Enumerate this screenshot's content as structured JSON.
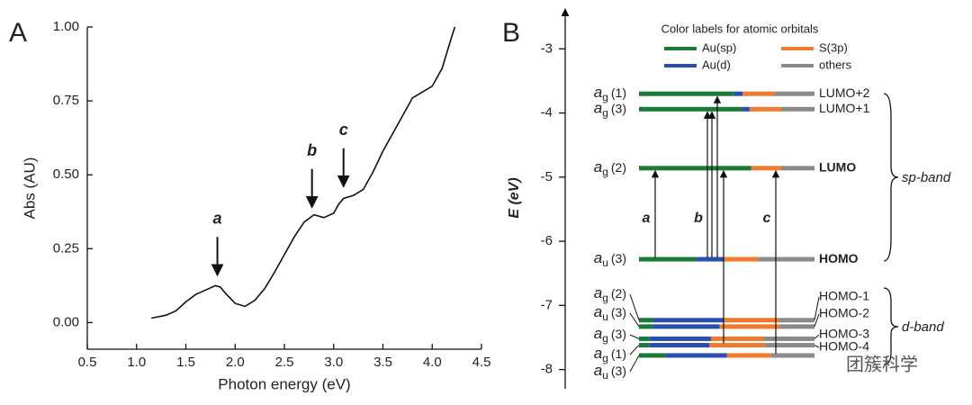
{
  "chart_data": [
    {
      "type": "line",
      "panel": "A",
      "xlabel": "Photon energy (eV)",
      "ylabel": "Abs (AU)",
      "xlim": [
        0.5,
        4.5
      ],
      "xticks": [
        0.5,
        {
          "value": 1,
          "label": "1.0"
        },
        1.5,
        {
          "value": 2,
          "label": "2.0"
        },
        2.5,
        {
          "value": 3,
          "label": "3.0"
        },
        3.5,
        {
          "value": 4,
          "label": "4.0"
        },
        4.5
      ],
      "ylim": [
        -0.09,
        1.0
      ],
      "yticks": [
        {
          "value": 0,
          "label": "0.00"
        },
        {
          "value": 0.25,
          "label": "0.25"
        },
        {
          "value": 0.5,
          "label": "0.50"
        },
        {
          "value": 0.75,
          "label": "0.75"
        },
        {
          "value": 1,
          "label": "1.00"
        }
      ],
      "color": "#111111",
      "x": [
        1.15,
        1.3,
        1.4,
        1.5,
        1.6,
        1.7,
        1.8,
        1.85,
        1.9,
        2.0,
        2.1,
        2.2,
        2.3,
        2.4,
        2.5,
        2.6,
        2.7,
        2.8,
        2.9,
        3.0,
        3.05,
        3.1,
        3.2,
        3.3,
        3.4,
        3.5,
        3.6,
        3.7,
        3.8,
        3.9,
        4.0,
        4.1,
        4.2,
        4.23
      ],
      "values": [
        0.015,
        0.025,
        0.04,
        0.07,
        0.095,
        0.11,
        0.125,
        0.12,
        0.1,
        0.065,
        0.055,
        0.075,
        0.115,
        0.17,
        0.23,
        0.29,
        0.34,
        0.365,
        0.355,
        0.37,
        0.4,
        0.42,
        0.43,
        0.45,
        0.51,
        0.58,
        0.64,
        0.7,
        0.76,
        0.78,
        0.8,
        0.86,
        0.97,
        1.0
      ],
      "annotations": [
        {
          "text": "a",
          "x": 1.82,
          "y": 0.13
        },
        {
          "text": "b",
          "x": 2.78,
          "y": 0.36
        },
        {
          "text": "c",
          "x": 3.1,
          "y": 0.43
        }
      ]
    },
    {
      "type": "energy-levels",
      "panel": "B",
      "ylabel": "E (eV)",
      "ylim": [
        -8.3,
        -2.35
      ],
      "yticks": [
        -3,
        -4,
        -5,
        -6,
        -7,
        -8
      ],
      "legend_title": "Color labels for atomic orbitals",
      "orbitals": [
        {
          "name": "Au(sp)",
          "color": "#1b7a3a"
        },
        {
          "name": "Au(d)",
          "color": "#2a4db0"
        },
        {
          "name": "S(3p)",
          "color": "#f07a2e"
        },
        {
          "name": "others",
          "color": "#8a8a8a"
        }
      ],
      "levels": [
        {
          "energy": -3.7,
          "left": {
            "sym": "a",
            "sub": "g",
            "num": "(1)"
          },
          "right": "LUMO+2",
          "composition": [
            54,
            5,
            18,
            23
          ]
        },
        {
          "energy": -3.94,
          "left": {
            "sym": "a",
            "sub": "g",
            "num": "(3)"
          },
          "right": "LUMO+1",
          "composition": [
            59,
            4,
            18,
            19
          ]
        },
        {
          "energy": -4.86,
          "left": {
            "sym": "a",
            "sub": "g",
            "num": "(2)"
          },
          "right": "LUMO",
          "bold": true,
          "composition": [
            64,
            0,
            17,
            19
          ]
        },
        {
          "energy": -6.28,
          "left": {
            "sym": "a",
            "sub": "u",
            "num": "(3)"
          },
          "right": "HOMO",
          "bold": true,
          "composition": [
            33,
            15,
            20,
            32
          ]
        },
        {
          "energy": -7.23,
          "left": {
            "sym": "a",
            "sub": "g",
            "num": "(2)"
          },
          "right": "HOMO-1",
          "composition": [
            8,
            40,
            32,
            20
          ]
        },
        {
          "energy": -7.33,
          "left": {
            "sym": "a",
            "sub": "u",
            "num": "(3)"
          },
          "right": "HOMO-2",
          "composition": [
            8,
            38,
            34,
            20
          ]
        },
        {
          "energy": -7.52,
          "left": {
            "sym": "a",
            "sub": "g",
            "num": "(3)"
          },
          "right": "HOMO-3",
          "composition": [
            6,
            35,
            30,
            29
          ]
        },
        {
          "energy": -7.62,
          "left": {
            "sym": "a",
            "sub": "g",
            "num": "(1)"
          },
          "right": "HOMO-4",
          "composition": [
            6,
            34,
            32,
            28
          ]
        },
        {
          "energy": -7.78,
          "left": {
            "sym": "a",
            "sub": "u",
            "num": "(3)"
          },
          "right": null,
          "composition": [
            15,
            35,
            25,
            25
          ]
        }
      ],
      "transitions": [
        {
          "label": "a"
        },
        {
          "label": "b"
        },
        {
          "label": "c"
        }
      ],
      "bands": [
        {
          "label": "sp-band"
        },
        {
          "label": "d-band"
        }
      ],
      "watermark": "团簇科学"
    }
  ]
}
